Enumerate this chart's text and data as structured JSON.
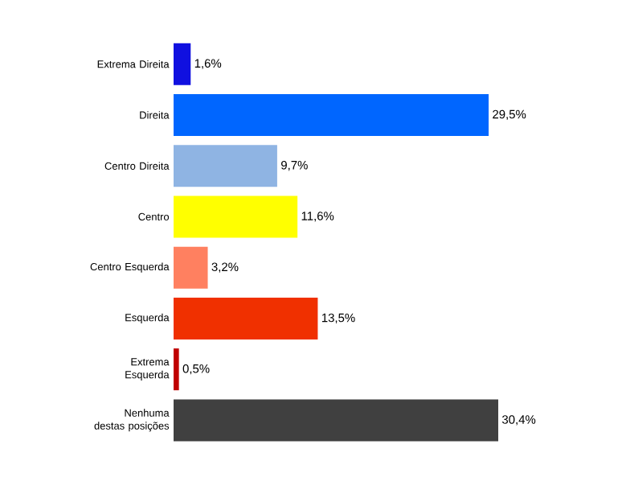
{
  "chart_data": {
    "type": "bar",
    "orientation": "horizontal",
    "categories": [
      "Extrema Direita",
      "Direita",
      "Centro Direita",
      "Centro",
      "Centro Esquerda",
      "Esquerda",
      "Extrema Esquerda",
      "Nenhuma destas posições"
    ],
    "values": [
      1.6,
      29.5,
      9.7,
      11.6,
      3.2,
      13.5,
      0.5,
      30.4
    ],
    "colors": [
      "#1010e0",
      "#0066ff",
      "#8fb4e3",
      "#ffff00",
      "#ff8060",
      "#f03000",
      "#c00000",
      "#404040"
    ],
    "value_labels": [
      "1,6%",
      "29,5%",
      "9,7%",
      "11,6%",
      "3,2%",
      "13,5%",
      "0,5%",
      "30,4%"
    ]
  }
}
